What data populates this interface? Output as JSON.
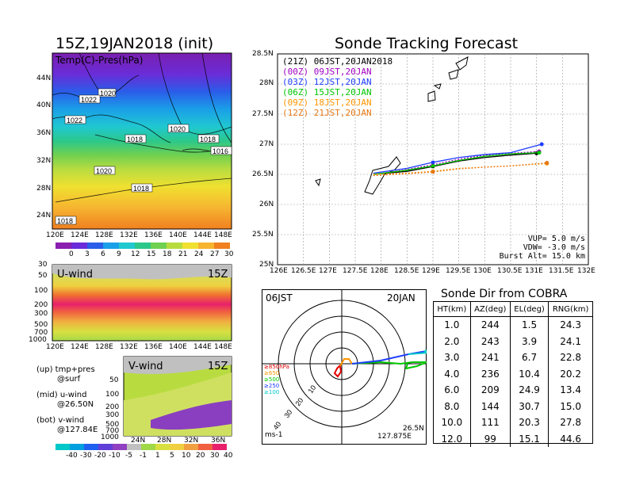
{
  "left_panel": {
    "title": "15Z,19JAN2018 (init)",
    "map_label": "Temp(C)-Pres(hPa)",
    "lat_labels": [
      "44N",
      "40N",
      "36N",
      "32N",
      "28N",
      "24N"
    ],
    "lon_labels": [
      "120E",
      "124E",
      "128E",
      "132E",
      "136E",
      "140E",
      "144E",
      "148E"
    ],
    "isobar_labels": [
      "1020",
      "1022",
      "1022",
      "1020",
      "1018",
      "1018",
      "1016",
      "1020",
      "1018",
      "1018"
    ],
    "temp_colorbar_labels": [
      "0",
      "3",
      "6",
      "9",
      "12",
      "15",
      "18",
      "21",
      "24",
      "27",
      "30"
    ],
    "uwind_label": "U-wind",
    "uwind_time": "15Z",
    "uwind_p_labels": [
      "30",
      "50",
      "100",
      "200",
      "300",
      "500",
      "700",
      "1000"
    ],
    "vwind_label": "V-wind",
    "vwind_time": "15Z",
    "vwind_p_labels": [
      "50",
      "100",
      "200",
      "300",
      "500",
      "700",
      "1000"
    ],
    "vwind_lat_labels": [
      "24N",
      "28N",
      "32N",
      "36N"
    ],
    "notes": [
      "(up) tmp+pres",
      "@surf",
      "(mid) u-wind",
      "@26.50N",
      "(bot) v-wind",
      "@127.84E"
    ],
    "wind_colorbar_labels": [
      "-40",
      "-30",
      "-20",
      "-10",
      "-5",
      "-1",
      "1",
      "5",
      "10",
      "20",
      "30",
      "40"
    ]
  },
  "tracking": {
    "title": "Sonde Tracking Forecast",
    "legend": [
      {
        "text": "(21Z)  06JST,20JAN2018",
        "color": "#000000"
      },
      {
        "text": "(00Z)  09JST,20JAN",
        "color": "#a000c0"
      },
      {
        "text": "(03Z)  12JST,20JAN",
        "color": "#1e3cff"
      },
      {
        "text": "(06Z)  15JST,20JAN",
        "color": "#00c800"
      },
      {
        "text": "(09Z)  18JST,20JAN",
        "color": "#ff9600"
      },
      {
        "text": "(12Z)  21JST,20JAN",
        "color": "#e67814"
      }
    ],
    "params": [
      "VUP= 5.0 m/s",
      "VDW= -3.0 m/s",
      "Burst Alt= 15.0 km"
    ],
    "lat_labels": [
      "28.5N",
      "28N",
      "27.5N",
      "27N",
      "26.5N",
      "26N",
      "25.5N",
      "25N"
    ],
    "lon_labels": [
      "126E",
      "126.5E",
      "127E",
      "127.5E",
      "128E",
      "128.5E",
      "129E",
      "129.5E",
      "130E",
      "130.5E",
      "131E",
      "131.5E",
      "132E"
    ]
  },
  "polar": {
    "time_left": "06JST",
    "time_right": "20JAN",
    "ring_labels": [
      "10",
      "20",
      "30",
      "40"
    ],
    "level_legend": [
      {
        "text": "≥850hPa",
        "color": "#e60000"
      },
      {
        "text": "≥650",
        "color": "#ff9600"
      },
      {
        "text": "≥500",
        "color": "#00c800"
      },
      {
        "text": "≥250",
        "color": "#1e3cff"
      },
      {
        "text": "≥100",
        "color": "#00c8c8"
      }
    ],
    "unit": "ms-1",
    "position_lat": "26.5N",
    "position_lon": "127.875E"
  },
  "sonde_table": {
    "title": "Sonde Dir from COBRA",
    "headers": [
      "HT(km)",
      "AZ(deg)",
      "EL(deg)",
      "RNG(km)"
    ],
    "rows": [
      [
        "1.0",
        "244",
        "1.5",
        "24.3"
      ],
      [
        "2.0",
        "243",
        "3.9",
        "24.1"
      ],
      [
        "3.0",
        "241",
        "6.7",
        "22.8"
      ],
      [
        "4.0",
        "236",
        "10.4",
        "20.2"
      ],
      [
        "6.0",
        "209",
        "24.9",
        "13.4"
      ],
      [
        "8.0",
        "144",
        "30.7",
        "15.0"
      ],
      [
        "10.0",
        "111",
        "20.3",
        "27.8"
      ],
      [
        "12.0",
        "99",
        "15.1",
        "44.6"
      ]
    ]
  },
  "chart_data": {
    "type": "line",
    "title": "Sonde Tracking Forecast",
    "xlim": [
      126,
      132
    ],
    "ylim": [
      25,
      28.5
    ],
    "series": [
      {
        "name": "(21Z) 06JST,20JAN2018",
        "color": "#000000",
        "x": [
          127.85,
          128.5,
          129.0,
          129.5,
          130.0,
          130.5,
          131.0
        ],
        "y": [
          26.5,
          26.55,
          26.63,
          26.72,
          26.78,
          26.82,
          26.85
        ]
      },
      {
        "name": "(00Z) 09JST,20JAN",
        "color": "#a000c0",
        "x": [
          127.85,
          128.5,
          129.0,
          129.5,
          130.0,
          130.5,
          131.05
        ],
        "y": [
          26.5,
          26.58,
          26.66,
          26.75,
          26.82,
          26.85,
          26.88
        ]
      },
      {
        "name": "(03Z) 12JST,20JAN",
        "color": "#1e3cff",
        "x": [
          127.85,
          128.5,
          129.0,
          129.5,
          130.0,
          130.5,
          131.1
        ],
        "y": [
          26.52,
          26.6,
          26.7,
          26.78,
          26.83,
          26.86,
          27.0
        ]
      },
      {
        "name": "(06Z) 15JST,20JAN",
        "color": "#00c800",
        "x": [
          127.85,
          128.5,
          129.0,
          129.5,
          130.0,
          130.5,
          131.05
        ],
        "y": [
          26.5,
          26.57,
          26.64,
          26.73,
          26.8,
          26.84,
          26.86
        ]
      },
      {
        "name": "(09Z) 18JST,20JAN",
        "color": "#ff9600",
        "x": [
          127.85,
          128.5,
          129.0,
          129.5,
          130.0,
          130.5,
          131.2
        ],
        "y": [
          26.5,
          26.52,
          26.55,
          26.6,
          26.62,
          26.64,
          26.68
        ]
      },
      {
        "name": "(12Z) 21JST,20JAN",
        "color": "#e67814",
        "x": [
          127.85,
          128.5,
          129.0,
          129.5,
          130.0,
          130.5,
          131.2
        ],
        "y": [
          26.48,
          26.51,
          26.54,
          26.59,
          26.62,
          26.64,
          26.69
        ]
      }
    ]
  }
}
